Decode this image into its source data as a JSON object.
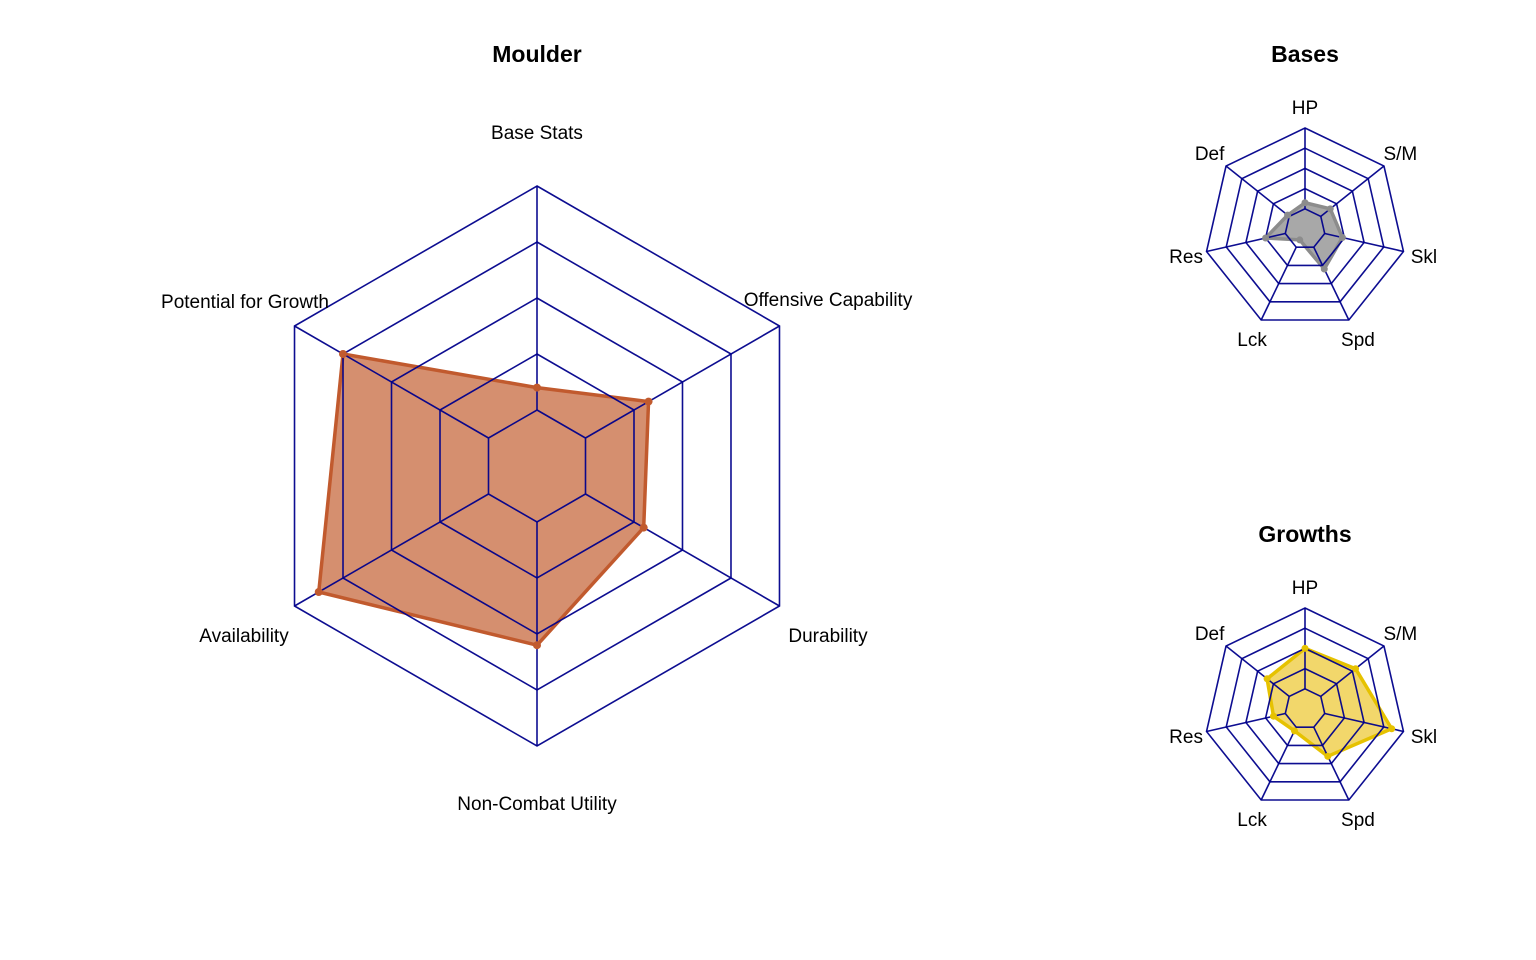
{
  "colors": {
    "grid": "#00008b",
    "main_fill": "#d58f6f",
    "main_stroke": "#c15a2e",
    "bases_fill": "#a8a8a8",
    "bases_stroke": "#8c8c8c",
    "growths_fill": "#f1d45e",
    "growths_stroke": "#e6c200"
  },
  "chart_data": [
    {
      "type": "radar",
      "title": "Moulder",
      "axes": [
        "Base Stats",
        "Offensive Capability",
        "Durability",
        "Non-Combat Utility",
        "Availability",
        "Potential for Growth"
      ],
      "grid_levels": 5,
      "range": [
        0,
        5
      ],
      "values": [
        1.4,
        2.3,
        2.2,
        3.2,
        4.5,
        4.0
      ]
    },
    {
      "type": "radar",
      "title": "Bases",
      "axes": [
        "HP",
        "S/M",
        "Skl",
        "Spd",
        "Lck",
        "Res",
        "Def"
      ],
      "grid_levels": 5,
      "range": [
        0,
        5
      ],
      "values": [
        1.3,
        1.6,
        1.9,
        2.2,
        0.6,
        2.0,
        1.1
      ]
    },
    {
      "type": "radar",
      "title": "Growths",
      "axes": [
        "HP",
        "S/M",
        "Skl",
        "Spd",
        "Lck",
        "Res",
        "Def"
      ],
      "grid_levels": 5,
      "range": [
        0,
        5
      ],
      "values": [
        3.0,
        3.2,
        4.4,
        2.6,
        1.2,
        1.6,
        2.4
      ]
    }
  ]
}
